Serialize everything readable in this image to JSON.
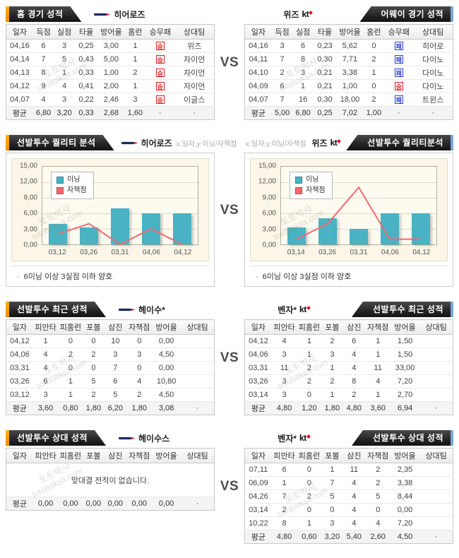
{
  "vs_label": "VS",
  "watermark": {
    "kr": "토토박사",
    "en": "totobaksa.com"
  },
  "badges": {
    "win": "승",
    "lose": "패"
  },
  "logos": {
    "kt": "kt"
  },
  "colors": {
    "accent_orange": "#ffb400",
    "accent_blue": "#79a7d7",
    "bar_teal": "#49b2c3",
    "line_red": "#f2696f",
    "banner_dark": "#262626",
    "win_red": "#e02020",
    "lose_blue": "#2b3fd0"
  },
  "s1": {
    "columns": [
      "일자",
      "득점",
      "실점",
      "타율",
      "방어율",
      "홈런",
      "승무패",
      "상대팀"
    ],
    "left": {
      "title": "홈 경기 성적",
      "team": "히어로즈",
      "rows": [
        [
          "04,16",
          "6",
          "3",
          "0,25",
          "3,00",
          "1",
          "win",
          "위즈"
        ],
        [
          "04,14",
          "7",
          "5",
          "0,43",
          "5,00",
          "1",
          "win",
          "자이언"
        ],
        [
          "04,13",
          "8",
          "1",
          "0,33",
          "1,00",
          "2",
          "win",
          "자이언"
        ],
        [
          "04,12",
          "9",
          "4",
          "0,41",
          "2,00",
          "1",
          "win",
          "자이언"
        ],
        [
          "04,07",
          "4",
          "3",
          "0,22",
          "2,46",
          "3",
          "win",
          "이글스"
        ]
      ],
      "avg": [
        "평균",
        "6,80",
        "3,20",
        "0,33",
        "2,68",
        "1,60",
        "·",
        "·"
      ]
    },
    "right": {
      "title": "어웨이 경기 성적",
      "team": "위즈",
      "rows": [
        [
          "04,16",
          "3",
          "6",
          "0,23",
          "5,62",
          "0",
          "lose",
          "히어로"
        ],
        [
          "04,11",
          "7",
          "8",
          "0,30",
          "7,71",
          "2",
          "lose",
          "다이노"
        ],
        [
          "04,10",
          "2",
          "3",
          "0,21",
          "3,38",
          "1",
          "lose",
          "다이노"
        ],
        [
          "04,09",
          "6",
          "1",
          "0,21",
          "1,00",
          "0",
          "win",
          "다이노"
        ],
        [
          "04,07",
          "7",
          "16",
          "0,30",
          "18,00",
          "2",
          "lose",
          "트윈스"
        ]
      ],
      "avg": [
        "평균",
        "5,00",
        "6,80",
        "0,25",
        "7,02",
        "1,00",
        "·",
        "·"
      ]
    }
  },
  "s2": {
    "axis_hint": "x:일자,y:이닝/자책점",
    "note": "6이닝 이상 3실점 이하 양호",
    "note_bullet": "·",
    "legend": [
      "이닝",
      "자책점"
    ],
    "yticks": [
      "15,00",
      "12,00",
      "9,00",
      "6,00",
      "3,00",
      "0,00"
    ],
    "left": {
      "title": "선발투수 퀄리티 분석",
      "team": "히어로즈",
      "chart": {
        "type": "bar+line",
        "categories": [
          "03,12",
          "03,26",
          "03,31",
          "04,06",
          "04,12"
        ],
        "series": [
          {
            "name": "이닝",
            "values": [
              4,
              3.3,
              7,
              6,
              6
            ]
          },
          {
            "name": "자책점",
            "values": [
              2,
              4,
              0,
              3,
              0
            ]
          }
        ],
        "ylim": [
          0,
          15
        ]
      }
    },
    "right": {
      "title": "선발투수 퀄리티분석",
      "team": "위즈",
      "chart": {
        "type": "bar+line",
        "categories": [
          "03,14",
          "03,26",
          "03,31",
          "04,06",
          "04,12"
        ],
        "series": [
          {
            "name": "이닝",
            "values": [
              3.3,
              5,
              3,
              6,
              6
            ]
          },
          {
            "name": "자책점",
            "values": [
              1,
              4,
              11,
              1,
              1
            ]
          }
        ],
        "ylim": [
          0,
          15
        ]
      }
    }
  },
  "s3": {
    "columns": [
      "일자",
      "피안타",
      "피홈런",
      "포볼",
      "삼진",
      "자책점",
      "방어율",
      "상대팀"
    ],
    "left": {
      "title": "선발투수 최근 성적",
      "player": "헤이수*",
      "rows": [
        [
          "04,12",
          "1",
          "0",
          "0",
          "10",
          "0",
          "0,00",
          ""
        ],
        [
          "04,06",
          "4",
          "2",
          "2",
          "3",
          "3",
          "4,50",
          ""
        ],
        [
          "03,31",
          "4",
          "0",
          "0",
          "7",
          "0",
          "0,00",
          ""
        ],
        [
          "03,26",
          "6",
          "1",
          "5",
          "6",
          "4",
          "10,80",
          ""
        ],
        [
          "03,12",
          "3",
          "1",
          "2",
          "5",
          "2",
          "4,50",
          ""
        ]
      ],
      "avg": [
        "평균",
        "3,60",
        "0,80",
        "1,80",
        "6,20",
        "1,80",
        "3,08",
        "·"
      ]
    },
    "right": {
      "title": "선발투수 최근 성적",
      "player": "벤자*",
      "rows": [
        [
          "04,12",
          "4",
          "1",
          "2",
          "6",
          "1",
          "1,50",
          ""
        ],
        [
          "04,06",
          "3",
          "1",
          "3",
          "4",
          "1",
          "1,50",
          ""
        ],
        [
          "03,31",
          "11",
          "2",
          "1",
          "4",
          "11",
          "33,00",
          ""
        ],
        [
          "03,26",
          "3",
          "2",
          "2",
          "8",
          "4",
          "7,20",
          ""
        ],
        [
          "03,14",
          "3",
          "0",
          "1",
          "2",
          "1",
          "2,70",
          ""
        ]
      ],
      "avg": [
        "평균",
        "4,80",
        "1,20",
        "1,80",
        "4,80",
        "3,60",
        "6,94",
        "·"
      ]
    }
  },
  "s4": {
    "columns": [
      "일자",
      "피안타",
      "피홈런",
      "포볼",
      "삼진",
      "자책점",
      "방어율",
      "상대팀"
    ],
    "left": {
      "title": "선발투수 상대 성적",
      "player": "헤이수스",
      "empty_message": "맞대결 전적이 없습니다.",
      "rows": [],
      "avg": [
        "평균",
        "0,00",
        "0,00",
        "0,00",
        "0,00",
        "0,00",
        "0,00",
        "·"
      ]
    },
    "right": {
      "title": "선발투수 상대 성적",
      "player": "벤자*",
      "rows": [
        [
          "07,11",
          "6",
          "0",
          "1",
          "11",
          "2",
          "2,35",
          ""
        ],
        [
          "06,09",
          "1",
          "0",
          "7",
          "4",
          "2",
          "3,38",
          ""
        ],
        [
          "04,26",
          "7",
          "2",
          "5",
          "4",
          "5",
          "8,44",
          ""
        ],
        [
          "03,14",
          "2",
          "0",
          "0",
          "4",
          "0",
          "0,00",
          ""
        ],
        [
          "10,22",
          "8",
          "1",
          "3",
          "4",
          "4",
          "7,20",
          ""
        ]
      ],
      "avg": [
        "평균",
        "4,80",
        "0,60",
        "3,20",
        "5,40",
        "2,60",
        "4,50",
        "·"
      ]
    }
  }
}
